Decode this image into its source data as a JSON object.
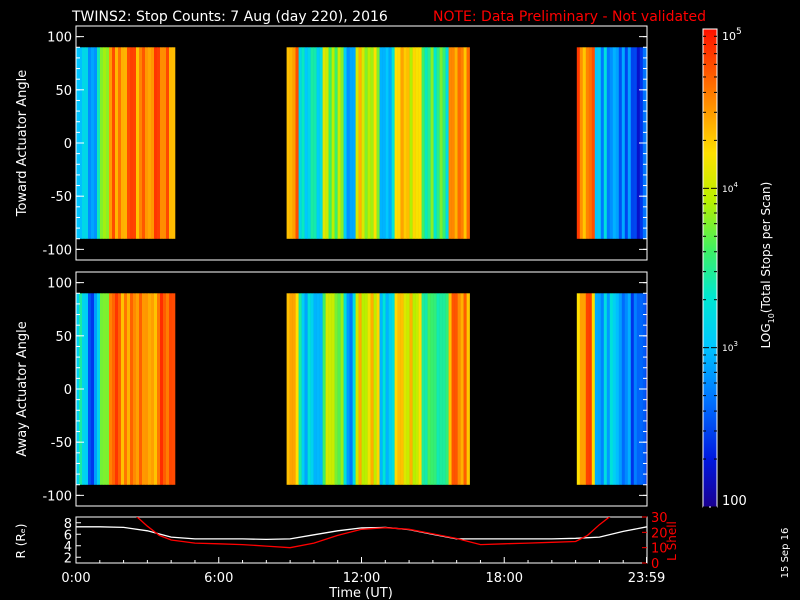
{
  "header": {
    "title": "TWINS2: Stop Counts:  7 Aug (day 220), 2016",
    "note": "NOTE: Data Preliminary - Not validated"
  },
  "footer": {
    "date_stamp": "15 Sep 16"
  },
  "colors": {
    "background": "#000000",
    "text": "#ffffff",
    "note": "#ff0000",
    "r_line": "#ffffff",
    "lshell_line": "#ff0000"
  },
  "chart_data": [
    {
      "type": "heatmap",
      "ylabel": "Toward Actuator Angle",
      "ylim": [
        -110,
        110
      ],
      "yticks": [
        "100",
        "50",
        "0",
        "-50",
        "-100"
      ],
      "angle_range": [
        -90,
        90
      ],
      "data_intervals_hours": [
        [
          0.0,
          4.1
        ],
        [
          8.85,
          16.45
        ],
        [
          21.05,
          23.98
        ]
      ]
    },
    {
      "type": "heatmap",
      "ylabel": "Away Actuator Angle",
      "ylim": [
        -110,
        110
      ],
      "yticks": [
        "100",
        "50",
        "0",
        "-50",
        "-100"
      ],
      "angle_range": [
        -90,
        90
      ],
      "data_intervals_hours": [
        [
          0.0,
          4.1
        ],
        [
          8.85,
          16.45
        ],
        [
          21.05,
          23.98
        ]
      ]
    },
    {
      "type": "line",
      "xlabel": "Time (UT)",
      "xticks": [
        "0:00",
        "6:00",
        "12:00",
        "18:00",
        "23:59"
      ],
      "ylabel_left": "R (Rₑ)",
      "ylim_left": [
        1,
        9
      ],
      "yticks_left": [
        "8",
        "6",
        "4",
        "2"
      ],
      "ylabel_right": "L Shell",
      "ylim_right": [
        0,
        30
      ],
      "yticks_right": [
        "30",
        "20",
        "10",
        "0"
      ],
      "series": [
        {
          "name": "R",
          "axis": "left",
          "x": [
            0,
            1,
            2,
            3,
            4,
            5,
            6,
            7,
            8,
            9,
            10,
            11,
            12,
            13,
            14,
            15,
            16,
            17,
            18,
            19,
            20,
            21,
            22,
            23,
            24
          ],
          "y": [
            7.3,
            7.3,
            7.2,
            6.6,
            5.5,
            5.2,
            5.2,
            5.2,
            5.1,
            5.2,
            5.9,
            6.6,
            7.1,
            7.2,
            6.8,
            6.0,
            5.2,
            5.2,
            5.2,
            5.2,
            5.2,
            5.3,
            5.5,
            6.5,
            7.3
          ]
        },
        {
          "name": "L Shell",
          "axis": "right",
          "x": [
            2.5,
            3.0,
            3.5,
            4.0,
            5.0,
            6.0,
            7.0,
            8.0,
            9.0,
            10.0,
            11.0,
            12.0,
            13.0,
            14.0,
            15.0,
            16.0,
            17.0,
            18.0,
            19.0,
            20.0,
            21.0,
            21.5,
            22.0,
            22.5
          ],
          "y": [
            31,
            24,
            18,
            15,
            13,
            12.5,
            12,
            11,
            10,
            13,
            18,
            22,
            23,
            22,
            19,
            16,
            12,
            12.5,
            13,
            13.5,
            14,
            18,
            25,
            31
          ]
        }
      ]
    }
  ],
  "colorbar": {
    "label": "LOG",
    "label_sub": "10",
    "label_rest": "(Total Stops per Scan)",
    "tick_top_base": "10",
    "tick_top_exp": "5",
    "tick_mid_base": "10",
    "tick_mid_exp": "4",
    "tick_low_base": "10",
    "tick_low_exp": "3",
    "tick_bottom": "100",
    "range_log": [
      2,
      5
    ]
  }
}
